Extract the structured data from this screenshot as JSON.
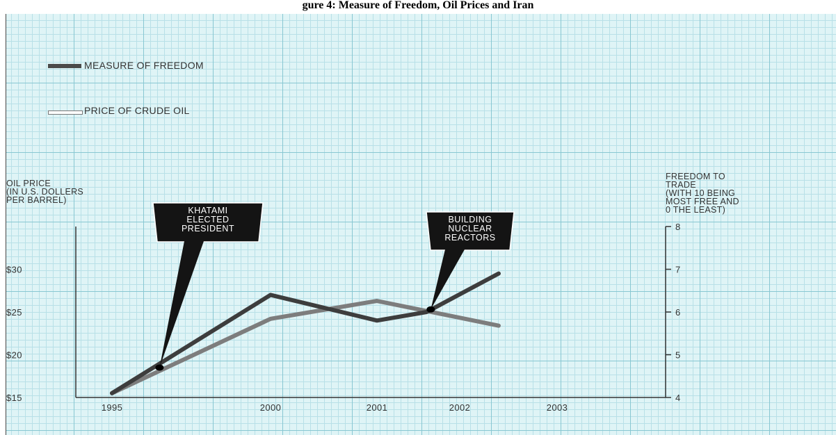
{
  "caption": "gure 4: Measure of Freedom, Oil Prices and Iran",
  "chart_data": {
    "type": "line",
    "categories": [
      "1995",
      "2000",
      "2001",
      "2002",
      "2003"
    ],
    "x_positions": [
      0,
      1,
      2,
      3,
      4
    ],
    "legend": [
      {
        "label": "MEASURE OF FREEDOM",
        "color": "#3d3d3d"
      },
      {
        "label": "PRICE OF CRUDE OIL",
        "color": "#7d7d7d"
      }
    ],
    "y_left": {
      "label": "OIL PRICE\n(IN U.S. DOLLERS\nPER BARREL)",
      "range": [
        15,
        35
      ],
      "ticks": [
        15,
        20,
        25,
        30
      ],
      "tick_labels": [
        "$15",
        "$20",
        "$25",
        "$30"
      ]
    },
    "y_right": {
      "label": "FREEDOM TO\nTRADE\n(WITH 10 BEING\nMOST FREE AND\n0 THE LEAST)",
      "range": [
        4,
        8
      ],
      "ticks": [
        4,
        5,
        6,
        7,
        8
      ],
      "tick_labels": [
        "4",
        "5",
        "6",
        "7",
        "8"
      ]
    },
    "series": [
      {
        "name": "MEASURE OF FREEDOM",
        "axis": "right",
        "color": "#3d3d3d",
        "width": 6,
        "x": [
          0,
          1,
          2,
          2.6,
          3.4
        ],
        "values": [
          4.1,
          6.4,
          5.8,
          6.0,
          6.9
        ]
      },
      {
        "name": "PRICE OF CRUDE OIL",
        "axis": "left",
        "color": "#7d7d7d",
        "width": 6,
        "x": [
          0,
          1,
          2,
          3.4
        ],
        "values": [
          15.5,
          24.2,
          26.3,
          23.4
        ]
      }
    ],
    "annotations": [
      {
        "text": [
          "KHATAMI",
          "ELECTED",
          "PRESIDENT"
        ],
        "x": 0.3,
        "y_left": 18.5
      },
      {
        "text": [
          "BUILDING",
          "NUCLEAR",
          "REACTORS"
        ],
        "x": 2.65,
        "y_left": 25.3
      }
    ],
    "grid": true,
    "legend_position": "top-left"
  }
}
